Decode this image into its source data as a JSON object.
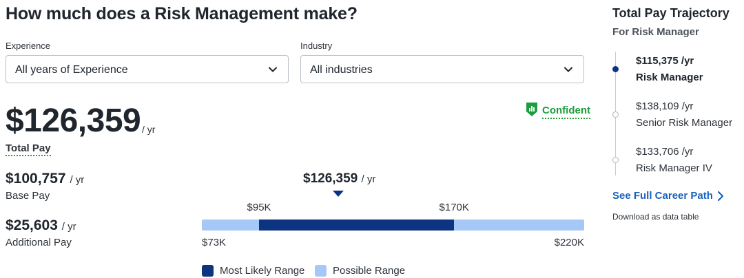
{
  "header": {
    "title": "How much does a Risk Management make?"
  },
  "filters": {
    "experience": {
      "label": "Experience",
      "value": "All years of Experience"
    },
    "industry": {
      "label": "Industry",
      "value": "All industries"
    }
  },
  "confidence": {
    "label": "Confident",
    "color": "#1a9e3e",
    "icon": "confidence-shield-icon"
  },
  "total_pay": {
    "amount": "$126,359",
    "unit": "/ yr",
    "label": "Total Pay"
  },
  "base_pay": {
    "amount": "$100,757",
    "unit": "/ yr",
    "label": "Base Pay"
  },
  "additional_pay": {
    "amount": "$25,603",
    "unit": "/ yr",
    "label": "Additional Pay"
  },
  "range": {
    "median": "$126,359",
    "median_unit": "/ yr",
    "likely_low": "$95K",
    "likely_high": "$170K",
    "possible_low": "$73K",
    "possible_high": "$220K",
    "scale": {
      "min": 73000,
      "max": 220000,
      "likely_min": 95000,
      "likely_max": 170000,
      "median": 126359
    },
    "colors": {
      "likely": "#0d3481",
      "possible": "#a6c8f7"
    }
  },
  "legend": {
    "likely": "Most Likely Range",
    "possible": "Possible Range"
  },
  "trajectory": {
    "title": "Total Pay Trajectory",
    "subtitle": "For Risk Manager",
    "items": [
      {
        "pay": "$115,375 /yr",
        "role": "Risk Manager",
        "active": true
      },
      {
        "pay": "$138,109 /yr",
        "role": "Senior Risk Manager",
        "active": false
      },
      {
        "pay": "$133,706 /yr",
        "role": "Risk Manager IV",
        "active": false
      }
    ],
    "career_link": "See Full Career Path",
    "download_link": "Download as data table"
  }
}
